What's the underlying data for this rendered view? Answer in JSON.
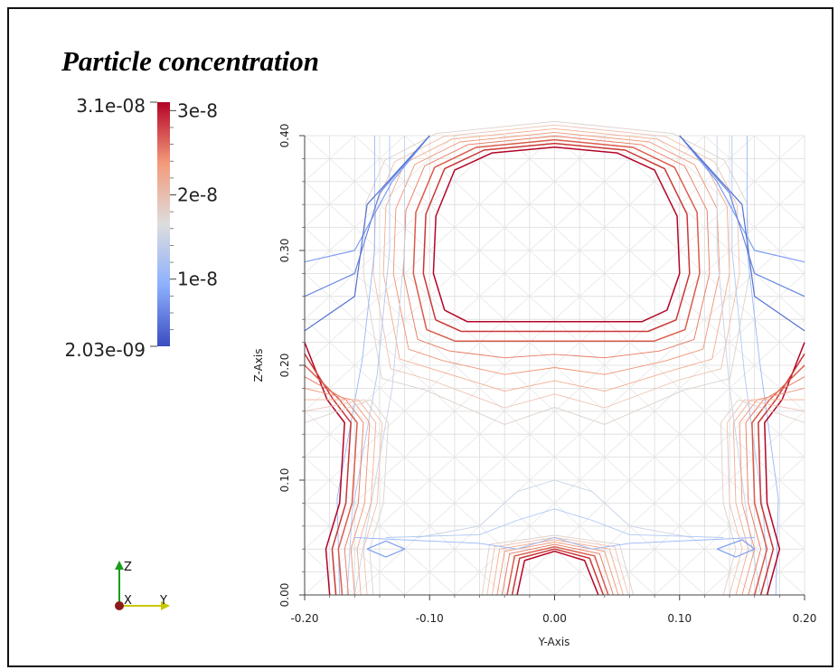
{
  "chart_data": {
    "type": "contour",
    "title": "Particle concentration",
    "xlabel": "Y-Axis",
    "ylabel": "Z-Axis",
    "xlim": [
      -0.2,
      0.2
    ],
    "ylim": [
      0.0,
      0.4
    ],
    "x_ticks": [
      "-0.20",
      "-0.10",
      "0.00",
      "0.10",
      "0.20"
    ],
    "y_ticks": [
      "0.00",
      "0.10",
      "0.20",
      "0.30",
      "0.40"
    ],
    "grid": true,
    "colorbar": {
      "min_label": "2.03e-09",
      "max_label": "3.1e-08",
      "min": 2.03e-09,
      "max": 3.1e-08,
      "tick_labels": [
        "3e-8",
        "2e-8",
        "1e-8"
      ],
      "tick_values": [
        3e-08,
        2e-08,
        1e-08
      ],
      "colormap_low": "#3b4cc0",
      "colormap_mid": "#dddddd",
      "colormap_high": "#b40426"
    },
    "axes_triad": {
      "x_label": "X",
      "y_label": "Y",
      "z_label": "Z"
    }
  }
}
